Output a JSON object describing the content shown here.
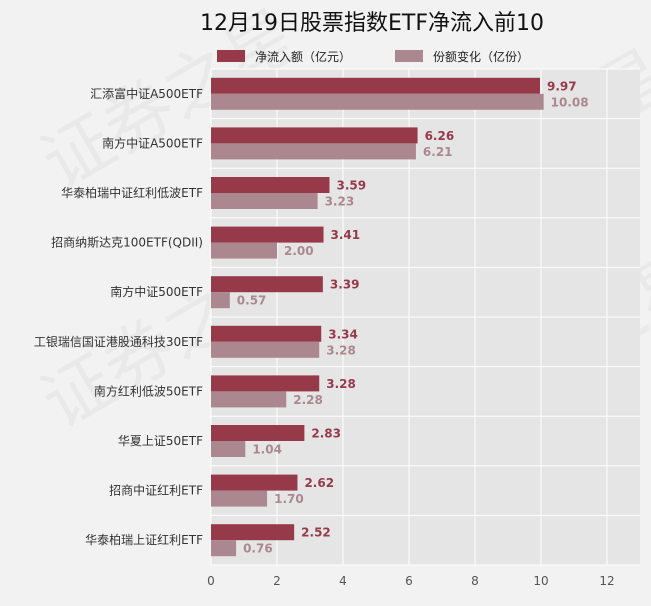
{
  "chart_data": {
    "type": "bar",
    "orientation": "horizontal",
    "title": "12月19日股票指数ETF净流入前10",
    "categories": [
      "汇添富中证A500ETF",
      "南方中证A500ETF",
      "华泰柏瑞中证红利低波ETF",
      "招商纳斯达克100ETF(QDII)",
      "南方中证500ETF",
      "工银瑞信国证港股通科技30ETF",
      "南方红利低波50ETF",
      "华夏上证50ETF",
      "招商中证红利ETF",
      "华泰柏瑞上证红利ETF"
    ],
    "series": [
      {
        "name": "净流入额（亿元）",
        "color": "#963a4a",
        "values": [
          9.97,
          6.26,
          3.59,
          3.41,
          3.39,
          3.34,
          3.28,
          2.83,
          2.62,
          2.52
        ]
      },
      {
        "name": "份额变化（亿份）",
        "color": "#ab8890",
        "values": [
          10.08,
          6.21,
          3.23,
          2.0,
          0.57,
          3.28,
          2.28,
          1.04,
          1.7,
          0.76
        ]
      }
    ],
    "value_labels_1": [
      "9.97",
      "6.26",
      "3.59",
      "3.41",
      "3.39",
      "3.34",
      "3.28",
      "2.83",
      "2.62",
      "2.52"
    ],
    "value_labels_2": [
      "10.08",
      "6.21",
      "3.23",
      "2.00",
      "0.57",
      "3.28",
      "2.28",
      "1.04",
      "1.70",
      "0.76"
    ],
    "xlim": [
      0,
      13
    ],
    "xticks": [
      0,
      2,
      4,
      6,
      8,
      10,
      12
    ],
    "xtick_labels": [
      "0",
      "2",
      "4",
      "6",
      "8",
      "10",
      "12"
    ],
    "grid": true,
    "legend_position": "top",
    "plot_background": "#e5e5e5"
  }
}
